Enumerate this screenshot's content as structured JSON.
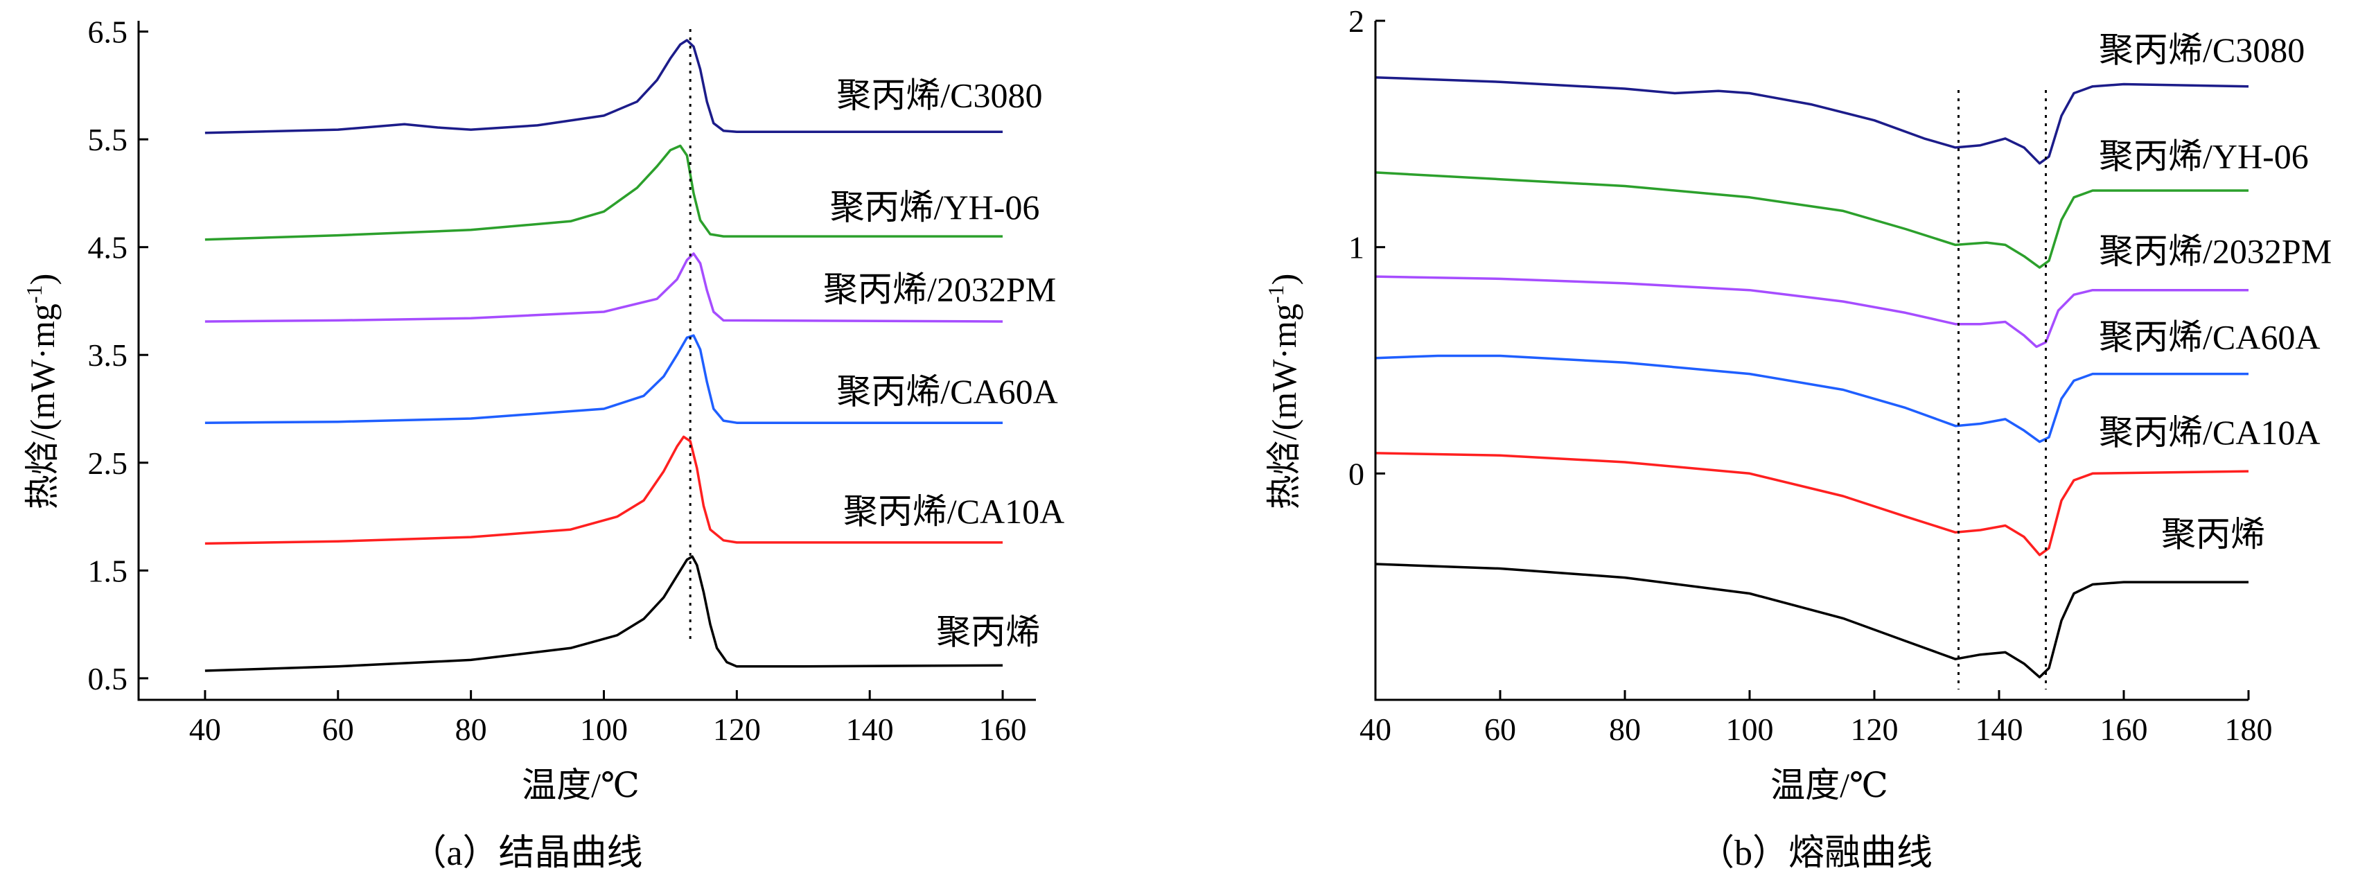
{
  "chart_data": [
    {
      "type": "line",
      "id": "a",
      "caption": "（a）结晶曲线",
      "xlabel": "温度/℃",
      "ylabel": "热焓/(mW·mg",
      "ylabel_sup": "-1",
      "ylabel_close": ")",
      "xlim": [
        30,
        165
      ],
      "ylim": [
        0.3,
        6.6
      ],
      "xticks": [
        "40",
        "60",
        "80",
        "100",
        "120",
        "140",
        "160"
      ],
      "yticks": [
        "0.5",
        "1.5",
        "2.5",
        "3.5",
        "4.5",
        "5.5",
        "6.5"
      ],
      "vlines": [
        113
      ],
      "series": [
        {
          "name": "聚丙烯/C3080",
          "color": "#1c1c8a",
          "label_at": [
            135,
            5.8
          ],
          "points": [
            [
              40,
              5.56
            ],
            [
              60,
              5.59
            ],
            [
              70,
              5.64
            ],
            [
              75,
              5.61
            ],
            [
              80,
              5.59
            ],
            [
              90,
              5.63
            ],
            [
              100,
              5.72
            ],
            [
              105,
              5.85
            ],
            [
              108,
              6.05
            ],
            [
              110,
              6.25
            ],
            [
              111.5,
              6.38
            ],
            [
              112.5,
              6.42
            ],
            [
              113.5,
              6.36
            ],
            [
              114.5,
              6.15
            ],
            [
              115.5,
              5.85
            ],
            [
              116.5,
              5.65
            ],
            [
              118,
              5.58
            ],
            [
              120,
              5.57
            ],
            [
              160,
              5.57
            ]
          ]
        },
        {
          "name": "聚丙烯/YH-06",
          "color": "#2ca02c",
          "label_at": [
            134,
            4.76
          ],
          "points": [
            [
              40,
              4.57
            ],
            [
              60,
              4.61
            ],
            [
              80,
              4.66
            ],
            [
              95,
              4.74
            ],
            [
              100,
              4.83
            ],
            [
              105,
              5.05
            ],
            [
              108,
              5.25
            ],
            [
              110,
              5.4
            ],
            [
              111.5,
              5.44
            ],
            [
              112.5,
              5.35
            ],
            [
              113.5,
              5.0
            ],
            [
              114.5,
              4.75
            ],
            [
              116,
              4.62
            ],
            [
              118,
              4.6
            ],
            [
              160,
              4.6
            ]
          ]
        },
        {
          "name": "聚丙烯/2032PM",
          "color": "#a64dff",
          "label_at": [
            133,
            4.0
          ],
          "points": [
            [
              40,
              3.81
            ],
            [
              60,
              3.82
            ],
            [
              80,
              3.84
            ],
            [
              100,
              3.9
            ],
            [
              108,
              4.02
            ],
            [
              111,
              4.2
            ],
            [
              112.5,
              4.38
            ],
            [
              113.5,
              4.44
            ],
            [
              114.5,
              4.35
            ],
            [
              115.5,
              4.1
            ],
            [
              116.5,
              3.9
            ],
            [
              118,
              3.82
            ],
            [
              160,
              3.81
            ]
          ]
        },
        {
          "name": "聚丙烯/CA60A",
          "color": "#1f5fff",
          "label_at": [
            135,
            3.05
          ],
          "points": [
            [
              40,
              2.87
            ],
            [
              60,
              2.88
            ],
            [
              80,
              2.91
            ],
            [
              100,
              3.0
            ],
            [
              106,
              3.12
            ],
            [
              109,
              3.3
            ],
            [
              111,
              3.5
            ],
            [
              112.5,
              3.66
            ],
            [
              113.5,
              3.68
            ],
            [
              114.5,
              3.55
            ],
            [
              115.5,
              3.25
            ],
            [
              116.5,
              3.0
            ],
            [
              118,
              2.89
            ],
            [
              120,
              2.87
            ],
            [
              160,
              2.87
            ]
          ]
        },
        {
          "name": "聚丙烯/CA10A",
          "color": "#ff2020",
          "label_at": [
            136,
            1.94
          ],
          "points": [
            [
              40,
              1.75
            ],
            [
              60,
              1.77
            ],
            [
              80,
              1.81
            ],
            [
              95,
              1.88
            ],
            [
              102,
              2.0
            ],
            [
              106,
              2.15
            ],
            [
              109,
              2.42
            ],
            [
              111,
              2.65
            ],
            [
              112,
              2.74
            ],
            [
              113,
              2.7
            ],
            [
              114,
              2.45
            ],
            [
              115,
              2.1
            ],
            [
              116,
              1.88
            ],
            [
              118,
              1.78
            ],
            [
              120,
              1.76
            ],
            [
              160,
              1.76
            ]
          ]
        },
        {
          "name": "聚丙烯",
          "color": "#000000",
          "label_at": [
            150,
            0.82
          ],
          "points": [
            [
              40,
              0.57
            ],
            [
              60,
              0.61
            ],
            [
              80,
              0.67
            ],
            [
              95,
              0.78
            ],
            [
              102,
              0.9
            ],
            [
              106,
              1.05
            ],
            [
              109,
              1.25
            ],
            [
              111,
              1.45
            ],
            [
              112.5,
              1.6
            ],
            [
              113.3,
              1.63
            ],
            [
              114,
              1.55
            ],
            [
              115,
              1.3
            ],
            [
              116,
              1.0
            ],
            [
              117,
              0.78
            ],
            [
              118.5,
              0.65
            ],
            [
              120,
              0.61
            ],
            [
              130,
              0.61
            ],
            [
              160,
              0.62
            ]
          ]
        }
      ]
    },
    {
      "type": "line",
      "id": "b",
      "caption": "（b）熔融曲线",
      "xlabel": "温度/℃",
      "ylabel": "热焓/(mW·mg",
      "ylabel_sup": "-1",
      "ylabel_close": ")",
      "xlim": [
        40,
        180
      ],
      "ylim": [
        -1.0,
        2.0
      ],
      "xticks": [
        "40",
        "60",
        "80",
        "100",
        "120",
        "140",
        "160",
        "180"
      ],
      "yticks": [
        "0",
        "1",
        "2"
      ],
      "vlines": [
        133.5,
        147.5
      ],
      "series": [
        {
          "name": "聚丙烯/C3080",
          "color": "#1c1c8a",
          "label_at": [
            156,
            1.82
          ],
          "points": [
            [
              40,
              1.75
            ],
            [
              60,
              1.73
            ],
            [
              80,
              1.7
            ],
            [
              88,
              1.68
            ],
            [
              95,
              1.69
            ],
            [
              100,
              1.68
            ],
            [
              110,
              1.63
            ],
            [
              120,
              1.56
            ],
            [
              128,
              1.48
            ],
            [
              133,
              1.44
            ],
            [
              137,
              1.45
            ],
            [
              141,
              1.48
            ],
            [
              144,
              1.44
            ],
            [
              146.5,
              1.37
            ],
            [
              148,
              1.4
            ],
            [
              150,
              1.58
            ],
            [
              152,
              1.68
            ],
            [
              155,
              1.71
            ],
            [
              160,
              1.72
            ],
            [
              180,
              1.71
            ]
          ]
        },
        {
          "name": "聚丙烯/YH-06",
          "color": "#2ca02c",
          "label_at": [
            156,
            1.35
          ],
          "points": [
            [
              40,
              1.33
            ],
            [
              60,
              1.3
            ],
            [
              80,
              1.27
            ],
            [
              100,
              1.22
            ],
            [
              115,
              1.16
            ],
            [
              125,
              1.08
            ],
            [
              133,
              1.01
            ],
            [
              138,
              1.02
            ],
            [
              141,
              1.01
            ],
            [
              144,
              0.96
            ],
            [
              146.5,
              0.91
            ],
            [
              148,
              0.94
            ],
            [
              150,
              1.12
            ],
            [
              152,
              1.22
            ],
            [
              155,
              1.25
            ],
            [
              180,
              1.25
            ]
          ]
        },
        {
          "name": "聚丙烯/2032PM",
          "color": "#a64dff",
          "label_at": [
            156,
            0.93
          ],
          "points": [
            [
              40,
              0.87
            ],
            [
              60,
              0.86
            ],
            [
              80,
              0.84
            ],
            [
              100,
              0.81
            ],
            [
              115,
              0.76
            ],
            [
              125,
              0.71
            ],
            [
              133,
              0.66
            ],
            [
              137,
              0.66
            ],
            [
              141,
              0.67
            ],
            [
              144,
              0.61
            ],
            [
              146,
              0.56
            ],
            [
              147.5,
              0.58
            ],
            [
              149.5,
              0.72
            ],
            [
              152,
              0.79
            ],
            [
              155,
              0.81
            ],
            [
              180,
              0.81
            ]
          ]
        },
        {
          "name": "聚丙烯/CA60A",
          "color": "#1f5fff",
          "label_at": [
            156,
            0.55
          ],
          "points": [
            [
              40,
              0.51
            ],
            [
              50,
              0.52
            ],
            [
              60,
              0.52
            ],
            [
              80,
              0.49
            ],
            [
              100,
              0.44
            ],
            [
              115,
              0.37
            ],
            [
              125,
              0.29
            ],
            [
              133,
              0.21
            ],
            [
              137,
              0.22
            ],
            [
              141,
              0.24
            ],
            [
              144,
              0.19
            ],
            [
              146.5,
              0.14
            ],
            [
              148,
              0.16
            ],
            [
              150,
              0.33
            ],
            [
              152,
              0.41
            ],
            [
              155,
              0.44
            ],
            [
              180,
              0.44
            ]
          ]
        },
        {
          "name": "聚丙烯/CA10A",
          "color": "#ff2020",
          "label_at": [
            156,
            0.13
          ],
          "points": [
            [
              40,
              0.09
            ],
            [
              60,
              0.08
            ],
            [
              80,
              0.05
            ],
            [
              100,
              0.0
            ],
            [
              115,
              -0.1
            ],
            [
              125,
              -0.19
            ],
            [
              133,
              -0.26
            ],
            [
              137,
              -0.25
            ],
            [
              141,
              -0.23
            ],
            [
              144,
              -0.28
            ],
            [
              146.5,
              -0.36
            ],
            [
              148,
              -0.33
            ],
            [
              150,
              -0.12
            ],
            [
              152,
              -0.03
            ],
            [
              155,
              0.0
            ],
            [
              180,
              0.01
            ]
          ]
        },
        {
          "name": "聚丙烯",
          "color": "#000000",
          "label_at": [
            166,
            -0.32
          ],
          "points": [
            [
              40,
              -0.4
            ],
            [
              60,
              -0.42
            ],
            [
              80,
              -0.46
            ],
            [
              100,
              -0.53
            ],
            [
              115,
              -0.64
            ],
            [
              125,
              -0.74
            ],
            [
              133,
              -0.82
            ],
            [
              137,
              -0.8
            ],
            [
              141,
              -0.79
            ],
            [
              144,
              -0.84
            ],
            [
              146.5,
              -0.9
            ],
            [
              148,
              -0.86
            ],
            [
              150,
              -0.65
            ],
            [
              152,
              -0.53
            ],
            [
              155,
              -0.49
            ],
            [
              160,
              -0.48
            ],
            [
              180,
              -0.48
            ]
          ]
        }
      ]
    }
  ]
}
